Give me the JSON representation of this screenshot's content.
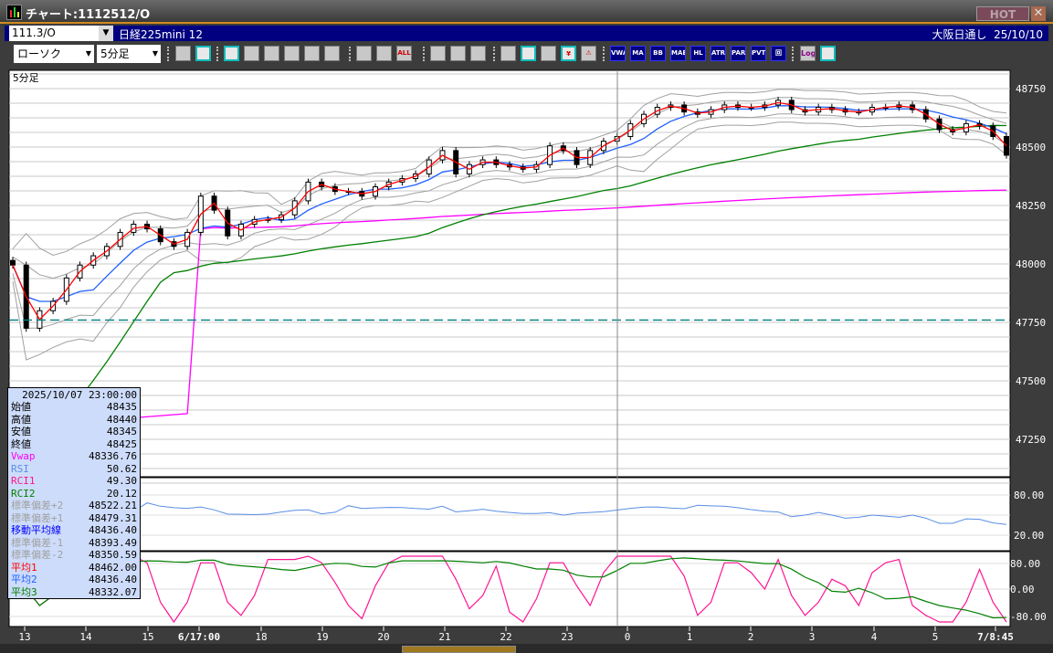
{
  "window": {
    "title": "チャート:1112512/O",
    "hot_label": "HOT",
    "close_label": "✕"
  },
  "navbar": {
    "symbol_code": "111.3/O",
    "symbol_name": "日経225mini 12",
    "market": "大阪日通し",
    "date": "25/10/10"
  },
  "toolbar": {
    "chart_type": "ローソク",
    "period": "5分足",
    "buttons": [
      {
        "icon": "zoom-icon",
        "label": ""
      },
      {
        "icon": "split-panel-icon",
        "label": ""
      },
      {
        "icon": "pencil-icon",
        "label": ""
      },
      {
        "icon": "line-draw-icon",
        "label": ""
      },
      {
        "icon": "cursor-icon",
        "label": ""
      },
      {
        "icon": "eraser-icon",
        "label": ""
      },
      {
        "icon": "copy-icon",
        "label": ""
      },
      {
        "icon": "trash-icon",
        "label": ""
      },
      {
        "icon": "expand-icon",
        "label": ""
      },
      {
        "icon": "shrink-icon",
        "label": ""
      },
      {
        "icon": "all-icon",
        "label": "ALL"
      },
      {
        "icon": "settings-icon",
        "label": ""
      },
      {
        "icon": "wrench-icon",
        "label": ""
      },
      {
        "icon": "color-icon",
        "label": ""
      },
      {
        "icon": "order-icon",
        "label": ""
      },
      {
        "icon": "alert-icon",
        "label": ""
      },
      {
        "icon": "calendar-icon",
        "label": ""
      },
      {
        "icon": "yen-icon",
        "label": "¥"
      },
      {
        "icon": "warning-icon",
        "label": "⚠"
      },
      {
        "icon": "vwap-icon",
        "label": "VWAP"
      },
      {
        "icon": "ma-icon",
        "label": "MA"
      },
      {
        "icon": "bb-icon",
        "label": "BB"
      },
      {
        "icon": "mae-icon",
        "label": "MAE"
      },
      {
        "icon": "hl-icon",
        "label": "HL"
      },
      {
        "icon": "atr-icon",
        "label": "ATR"
      },
      {
        "icon": "para-icon",
        "label": "PARA"
      },
      {
        "icon": "pvt-icon",
        "label": "PVT"
      },
      {
        "icon": "frame-icon",
        "label": "回"
      },
      {
        "icon": "log-icon",
        "label": "Log"
      },
      {
        "icon": "export-icon",
        "label": ""
      }
    ]
  },
  "chart": {
    "period_label": "5分足",
    "colors": {
      "up": "#ffffff",
      "down": "#000000",
      "ma1": "#ff0000",
      "ma2": "#2060ff",
      "ma3": "#008000",
      "vwap": "#ff00ff",
      "bands": "#a0a0a0",
      "rsi": "#5b8ee6",
      "rci1": "#ff1493",
      "rci2": "#008000",
      "dashed": "#008080"
    }
  },
  "chart_data": {
    "type": "candlestick",
    "y_ticks": [
      "48750",
      "48500",
      "48250",
      "48000",
      "47750",
      "47500",
      "47250"
    ],
    "y_range": [
      47000,
      48850
    ],
    "x_ticks": [
      "13",
      "14",
      "15",
      "6/17:00",
      "18",
      "19",
      "20",
      "21",
      "22",
      "23",
      "0",
      "1",
      "2",
      "3",
      "4",
      "5",
      "7/8:45"
    ],
    "closes": [
      47995,
      47725,
      47800,
      47840,
      47940,
      47995,
      48035,
      48075,
      48135,
      48170,
      48150,
      48095,
      48075,
      48135,
      48290,
      48230,
      48120,
      48170,
      48190,
      48190,
      48210,
      48270,
      48350,
      48330,
      48310,
      48310,
      48290,
      48330,
      48350,
      48365,
      48385,
      48445,
      48485,
      48385,
      48425,
      48445,
      48425,
      48415,
      48405,
      48425,
      48505,
      48485,
      48425,
      48485,
      48525,
      48545,
      48600,
      48640,
      48670,
      48680,
      48650,
      48640,
      48660,
      48680,
      48670,
      48670,
      48680,
      48700,
      48660,
      48650,
      48670,
      48660,
      48650,
      48650,
      48670,
      48670,
      48680,
      48660,
      48620,
      48575,
      48565,
      48600,
      48590,
      48545,
      48465
    ],
    "dashed_level": 47760,
    "rsi_ticks": [
      "80.00",
      "20.00"
    ],
    "rci_ticks": [
      "80.00",
      "0.00",
      "-80.00"
    ]
  },
  "tooltip": {
    "datetime": "2025/10/07 23:00:00",
    "rows": [
      {
        "label": "始値",
        "value": "48435",
        "color": "#000000"
      },
      {
        "label": "高値",
        "value": "48440",
        "color": "#000000"
      },
      {
        "label": "安値",
        "value": "48345",
        "color": "#000000"
      },
      {
        "label": "終値",
        "value": "48425",
        "color": "#000000"
      },
      {
        "label": "Vwap",
        "value": "48336.76",
        "color": "#ff00ff"
      },
      {
        "label": "RSI",
        "value": "50.62",
        "color": "#5b8ee6"
      },
      {
        "label": "RCI1",
        "value": "49.30",
        "color": "#ff1493"
      },
      {
        "label": "RCI2",
        "value": "20.12",
        "color": "#008000"
      },
      {
        "label": "標準偏差+2",
        "value": "48522.21",
        "color": "#a0a0a0"
      },
      {
        "label": "標準偏差+1",
        "value": "48479.31",
        "color": "#a0a0a0"
      },
      {
        "label": "移動平均線",
        "value": "48436.40",
        "color": "#0000ff"
      },
      {
        "label": "標準偏差-1",
        "value": "48393.49",
        "color": "#a0a0a0"
      },
      {
        "label": "標準偏差-2",
        "value": "48350.59",
        "color": "#a0a0a0"
      },
      {
        "label": "平均1",
        "value": "48462.00",
        "color": "#ff0000"
      },
      {
        "label": "平均2",
        "value": "48436.40",
        "color": "#2060ff"
      },
      {
        "label": "平均3",
        "value": "48332.07",
        "color": "#008000"
      }
    ]
  }
}
